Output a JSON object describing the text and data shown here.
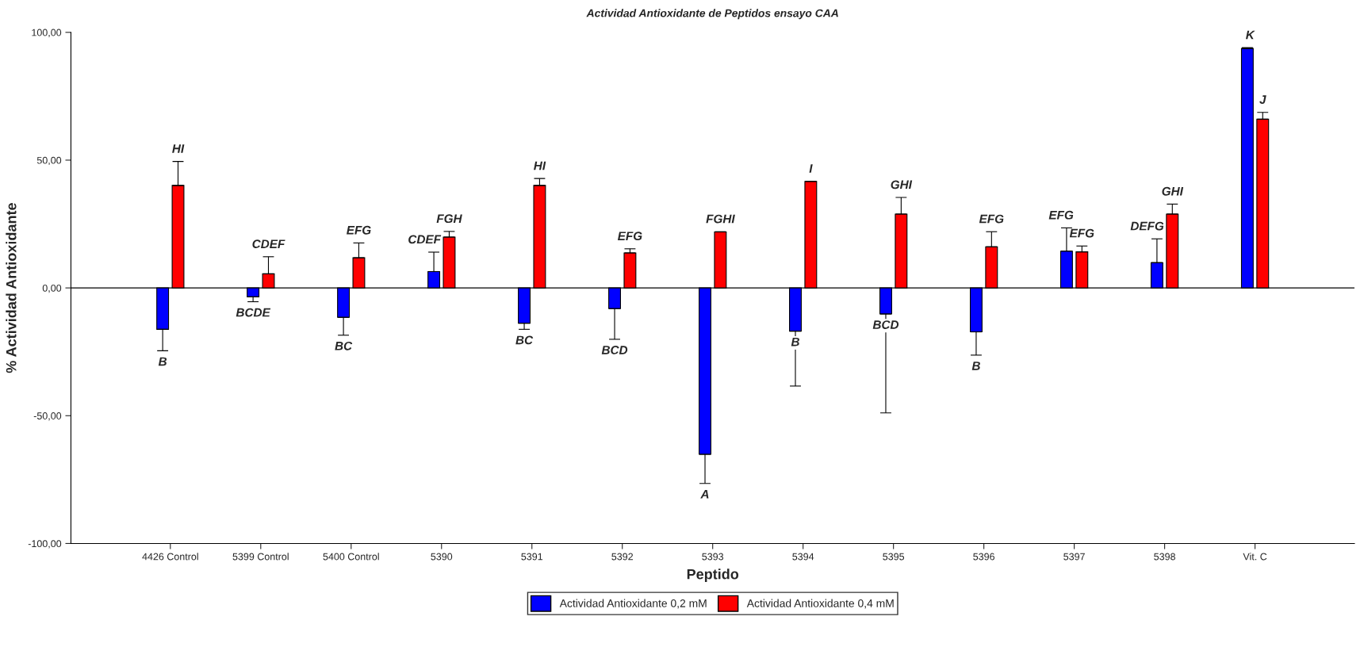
{
  "chart_data": {
    "type": "bar",
    "title": "Actividad Antioxidante de Peptidos ensayo CAA",
    "xlabel": "Peptido",
    "ylabel": "% Actividad Antioxidante",
    "categories": [
      "4426 Control",
      "5399 Control",
      "5400 Control",
      "5390",
      "5391",
      "5392",
      "5393",
      "5394",
      "5395",
      "5396",
      "5397",
      "5398",
      "Vit. C"
    ],
    "series": [
      {
        "name": "Actividad Antioxidante 0,2 mM",
        "color": "#0000ff",
        "values": [
          -16.2,
          -3.5,
          -11.5,
          6.4,
          -13.8,
          -8.1,
          -65.1,
          -16.9,
          -10.2,
          -17.2,
          14.4,
          9.9,
          93.7
        ],
        "errors": [
          [
            -24.6,
            -16.2
          ],
          [
            -5.4,
            -3.5
          ],
          [
            -18.5,
            -11.5
          ],
          [
            6.4,
            14.0
          ],
          [
            -16.2,
            -13.8
          ],
          [
            -20.1,
            -8.1
          ],
          [
            -76.5,
            -65.1
          ],
          [
            -38.4,
            -16.9
          ],
          [
            -48.9,
            -10.2
          ],
          [
            -26.3,
            -17.2
          ],
          [
            14.4,
            23.5
          ],
          [
            9.9,
            19.2
          ],
          [
            93.7,
            94.0
          ]
        ],
        "value_labels": [
          "B",
          "BCDE",
          "BC",
          "CDEF",
          "BC",
          "BCD",
          "A",
          "B",
          "BCD",
          "B",
          "EFG",
          "DEFG",
          "K"
        ]
      },
      {
        "name": "Actividad Antioxidante 0,4 mM",
        "color": "#ff0000",
        "values": [
          40.1,
          5.5,
          11.8,
          19.9,
          40.1,
          13.7,
          21.9,
          41.7,
          28.9,
          16.1,
          14.1,
          28.9,
          66.0
        ],
        "errors": [
          [
            40.1,
            49.5
          ],
          [
            5.5,
            12.2
          ],
          [
            11.8,
            17.6
          ],
          [
            19.9,
            22.1
          ],
          [
            40.1,
            42.8
          ],
          [
            13.7,
            15.3
          ],
          [
            21.9,
            22.0
          ],
          [
            41.7,
            41.7
          ],
          [
            28.9,
            35.4
          ],
          [
            16.1,
            22.0
          ],
          [
            14.1,
            16.4
          ],
          [
            28.9,
            32.8
          ],
          [
            66.0,
            68.7
          ]
        ],
        "value_labels": [
          "HI",
          "CDEF",
          "EFG",
          "FGH",
          "HI",
          "EFG",
          "FGHI",
          "I",
          "GHI",
          "EFG",
          "EFG",
          "GHI",
          "J"
        ]
      }
    ],
    "ylim": [
      -100,
      100
    ],
    "yticks": [
      {
        "value": -100,
        "label": "-100,00"
      },
      {
        "value": -50,
        "label": "-50,00"
      },
      {
        "value": 0,
        "label": "0,00"
      },
      {
        "value": 50,
        "label": "50,00"
      },
      {
        "value": 100,
        "label": "100,00"
      }
    ],
    "ref_lines": [
      {
        "axis": "y",
        "value": 0
      }
    ],
    "grid": false,
    "legend": "bottom"
  }
}
